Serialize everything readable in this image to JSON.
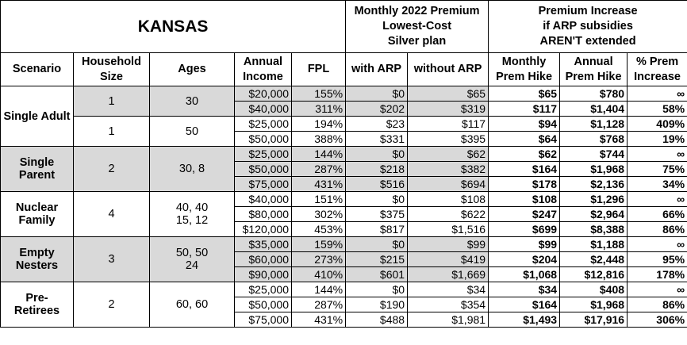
{
  "header": {
    "title": "KANSAS",
    "premium_group": [
      "Monthly 2022 Premium",
      "Lowest-Cost",
      "Silver plan"
    ],
    "increase_group": [
      "Premium Increase",
      "if ARP subsidies",
      "AREN'T extended"
    ]
  },
  "columns": [
    [
      "Scenario"
    ],
    [
      "Household",
      "Size"
    ],
    [
      "Ages"
    ],
    [
      "Annual",
      "Income"
    ],
    [
      "FPL"
    ],
    [
      "with ARP"
    ],
    [
      "without ARP"
    ],
    [
      "Monthly",
      "Prem Hike"
    ],
    [
      "Annual",
      "Prem Hike"
    ],
    [
      "% Prem",
      "Increase"
    ]
  ],
  "groups": [
    {
      "scenario": "Single Adult",
      "shaded": false,
      "subgroups": [
        {
          "household_size": "1",
          "ages": [
            "30"
          ],
          "shaded": true,
          "rows": [
            [
              "$20,000",
              "155%",
              "$0",
              "$65",
              "$65",
              "$780",
              "∞"
            ],
            [
              "$40,000",
              "311%",
              "$202",
              "$319",
              "$117",
              "$1,404",
              "58%"
            ]
          ]
        },
        {
          "household_size": "1",
          "ages": [
            "50"
          ],
          "shaded": false,
          "rows": [
            [
              "$25,000",
              "194%",
              "$23",
              "$117",
              "$94",
              "$1,128",
              "409%"
            ],
            [
              "$50,000",
              "388%",
              "$331",
              "$395",
              "$64",
              "$768",
              "19%"
            ]
          ]
        }
      ]
    },
    {
      "scenario": "Single Parent",
      "shaded": true,
      "subgroups": [
        {
          "household_size": "2",
          "ages": [
            "30, 8"
          ],
          "shaded": true,
          "rows": [
            [
              "$25,000",
              "144%",
              "$0",
              "$62",
              "$62",
              "$744",
              "∞"
            ],
            [
              "$50,000",
              "287%",
              "$218",
              "$382",
              "$164",
              "$1,968",
              "75%"
            ],
            [
              "$75,000",
              "431%",
              "$516",
              "$694",
              "$178",
              "$2,136",
              "34%"
            ]
          ]
        }
      ]
    },
    {
      "scenario": "Nuclear Family",
      "shaded": false,
      "subgroups": [
        {
          "household_size": "4",
          "ages": [
            "40, 40",
            "15, 12"
          ],
          "shaded": false,
          "rows": [
            [
              "$40,000",
              "151%",
              "$0",
              "$108",
              "$108",
              "$1,296",
              "∞"
            ],
            [
              "$80,000",
              "302%",
              "$375",
              "$622",
              "$247",
              "$2,964",
              "66%"
            ],
            [
              "$120,000",
              "453%",
              "$817",
              "$1,516",
              "$699",
              "$8,388",
              "86%"
            ]
          ]
        }
      ]
    },
    {
      "scenario": "Empty Nesters",
      "shaded": true,
      "subgroups": [
        {
          "household_size": "3",
          "ages": [
            "50, 50",
            "24"
          ],
          "shaded": true,
          "rows": [
            [
              "$35,000",
              "159%",
              "$0",
              "$99",
              "$99",
              "$1,188",
              "∞"
            ],
            [
              "$60,000",
              "273%",
              "$215",
              "$419",
              "$204",
              "$2,448",
              "95%"
            ],
            [
              "$90,000",
              "410%",
              "$601",
              "$1,669",
              "$1,068",
              "$12,816",
              "178%"
            ]
          ]
        }
      ]
    },
    {
      "scenario": "Pre-Retirees",
      "shaded": false,
      "subgroups": [
        {
          "household_size": "2",
          "ages": [
            "60, 60"
          ],
          "shaded": false,
          "rows": [
            [
              "$25,000",
              "144%",
              "$0",
              "$34",
              "$34",
              "$408",
              "∞"
            ],
            [
              "$50,000",
              "287%",
              "$190",
              "$354",
              "$164",
              "$1,968",
              "86%"
            ],
            [
              "$75,000",
              "431%",
              "$488",
              "$1,981",
              "$1,493",
              "$17,916",
              "306%"
            ]
          ]
        }
      ]
    }
  ]
}
